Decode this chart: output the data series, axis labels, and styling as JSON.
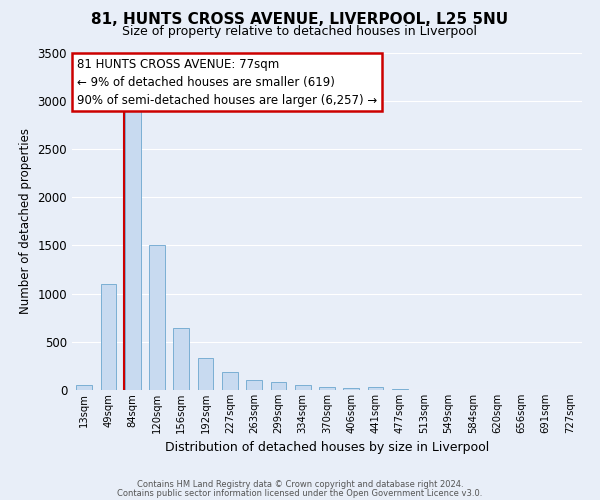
{
  "title": "81, HUNTS CROSS AVENUE, LIVERPOOL, L25 5NU",
  "subtitle": "Size of property relative to detached houses in Liverpool",
  "xlabel": "Distribution of detached houses by size in Liverpool",
  "ylabel": "Number of detached properties",
  "bar_color": "#c8daf0",
  "bar_edge_color": "#7bafd4",
  "bg_color": "#e8eef8",
  "grid_color": "#ffffff",
  "categories": [
    "13sqm",
    "49sqm",
    "84sqm",
    "120sqm",
    "156sqm",
    "192sqm",
    "227sqm",
    "263sqm",
    "299sqm",
    "334sqm",
    "370sqm",
    "406sqm",
    "441sqm",
    "477sqm",
    "513sqm",
    "549sqm",
    "584sqm",
    "620sqm",
    "656sqm",
    "691sqm",
    "727sqm"
  ],
  "values": [
    50,
    1100,
    2900,
    1500,
    640,
    330,
    185,
    100,
    85,
    50,
    35,
    20,
    30,
    10,
    5,
    5,
    3,
    2,
    2,
    1,
    1
  ],
  "ylim": [
    0,
    3500
  ],
  "yticks": [
    0,
    500,
    1000,
    1500,
    2000,
    2500,
    3000,
    3500
  ],
  "vline_x_index": 1.63,
  "annotation_line1": "81 HUNTS CROSS AVENUE: 77sqm",
  "annotation_line2": "← 9% of detached houses are smaller (619)",
  "annotation_line3": "90% of semi-detached houses are larger (6,257) →",
  "annotation_box_facecolor": "#ffffff",
  "annotation_box_edgecolor": "#cc0000",
  "vline_color": "#cc0000",
  "footer1": "Contains HM Land Registry data © Crown copyright and database right 2024.",
  "footer2": "Contains public sector information licensed under the Open Government Licence v3.0."
}
